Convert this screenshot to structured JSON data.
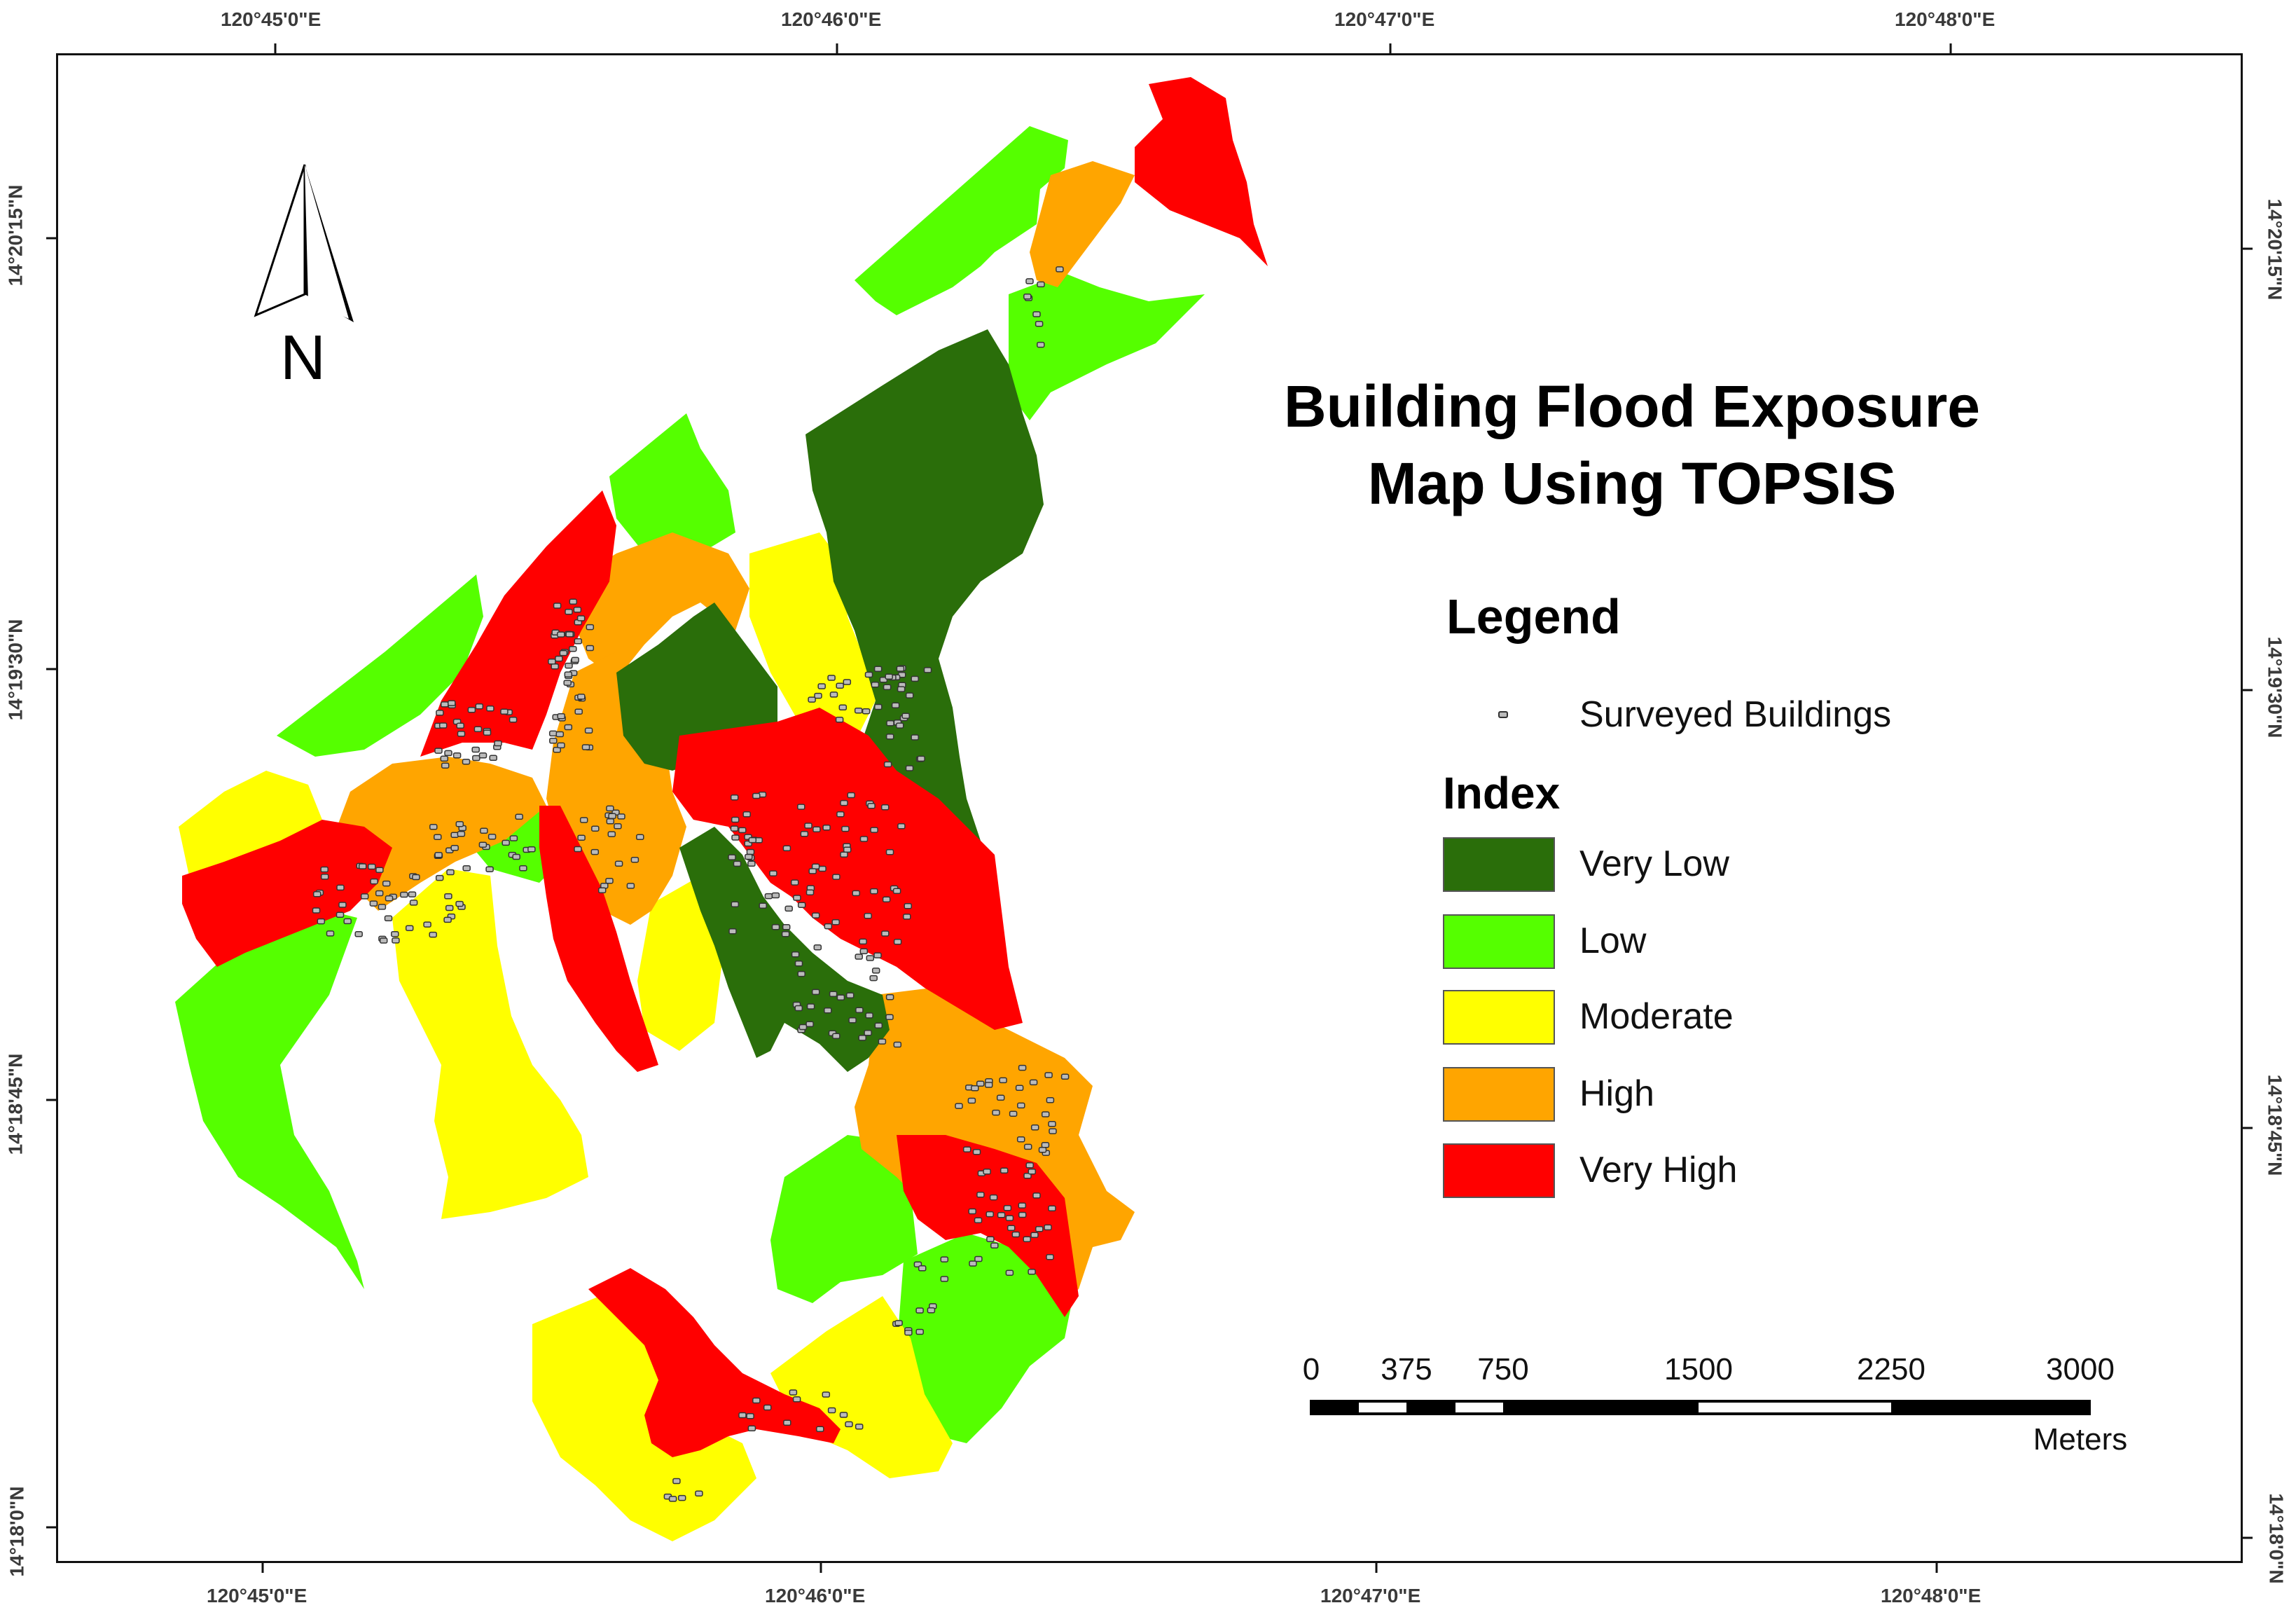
{
  "map": {
    "title_line1": "Building Flood Exposure",
    "title_line2": "Map Using TOPSIS",
    "north_label": "N",
    "graticule": {
      "top": [
        "120°45'0\"E",
        "120°46'0\"E",
        "120°47'0\"E",
        "120°48'0\"E"
      ],
      "bottom": [
        "120°45'0\"E",
        "120°46'0\"E",
        "120°47'0\"E",
        "120°48'0\"E"
      ],
      "left": [
        "14°20'15\"N",
        "14°19'30\"N",
        "14°18'45\"N",
        "14°18'0\"N"
      ],
      "right": [
        "14°20'15\"N",
        "14°19'30\"N",
        "14°18'45\"N",
        "14°18'0\"N"
      ]
    }
  },
  "legend": {
    "title": "Legend",
    "buildings_label": "Surveyed Buildings",
    "index_title": "Index",
    "classes": [
      {
        "label": "Very Low",
        "color": "#2a6e0a"
      },
      {
        "label": "Low",
        "color": "#55ff00"
      },
      {
        "label": "Moderate",
        "color": "#ffff00"
      },
      {
        "label": "High",
        "color": "#ffa500"
      },
      {
        "label": "Very High",
        "color": "#ff0000"
      }
    ]
  },
  "scale_bar": {
    "labels": [
      "0",
      "375",
      "750",
      "1500",
      "2250",
      "3000"
    ],
    "unit": "Meters"
  }
}
